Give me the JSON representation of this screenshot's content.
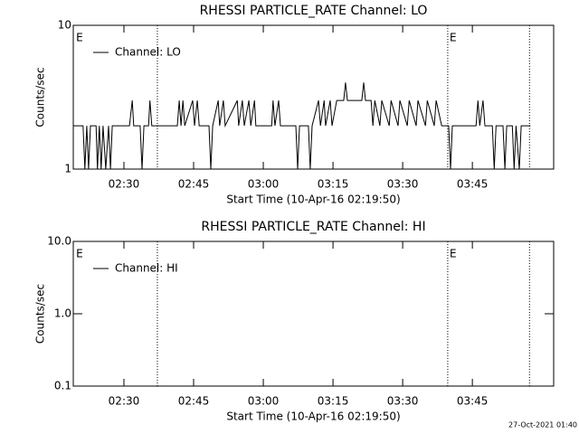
{
  "chart_data": [
    {
      "type": "line",
      "title": "RHESSI PARTICLE_RATE Channel: LO",
      "xlabel": "Start Time (10-Apr-16 02:19:50)",
      "ylabel": "Counts/sec",
      "log_y": true,
      "ylim": [
        1,
        10
      ],
      "yticks": [
        1,
        10
      ],
      "xlim": [
        19.1,
        122.5
      ],
      "xticks": [
        {
          "value": 30,
          "label": "02:30"
        },
        {
          "value": 45,
          "label": "02:45"
        },
        {
          "value": 60,
          "label": "03:00"
        },
        {
          "value": 75,
          "label": "03:15"
        },
        {
          "value": 90,
          "label": "03:30"
        },
        {
          "value": 105,
          "label": "03:45"
        }
      ],
      "vlines": [
        37.2,
        99.7,
        117.3
      ],
      "annotations": [
        {
          "x": 19.7,
          "text": "E"
        },
        {
          "x": 100.1,
          "text": "E"
        }
      ],
      "legend": "upper left",
      "series": [
        {
          "name": "Channel: LO",
          "color": "#000000",
          "x": [
            19.1,
            21.2,
            21.6,
            22.0,
            22.4,
            22.8,
            24.0,
            24.3,
            24.7,
            25.1,
            25.5,
            26.1,
            26.7,
            27.1,
            27.5,
            31.2,
            31.8,
            32.1,
            33.5,
            33.9,
            34.3,
            35.3,
            35.6,
            36.0,
            41.5,
            41.9,
            42.3,
            42.7,
            43.1,
            44.8,
            45.2,
            45.8,
            46.2,
            48.3,
            48.7,
            49.1,
            50.3,
            50.6,
            51.4,
            51.8,
            54.4,
            54.7,
            55.5,
            55.9,
            56.9,
            57.3,
            58.1,
            58.4,
            61.8,
            62.1,
            62.5,
            63.3,
            63.7,
            67.0,
            67.4,
            67.8,
            69.7,
            70.1,
            70.5,
            71.9,
            72.3,
            73.1,
            73.4,
            74.4,
            74.8,
            75.8,
            76.6,
            77.3,
            77.7,
            78.1,
            81.2,
            81.6,
            82.0,
            83.2,
            83.6,
            84.0,
            85.1,
            85.5,
            87.1,
            87.5,
            89.0,
            89.4,
            91.0,
            91.4,
            92.9,
            93.3,
            94.9,
            95.3,
            96.8,
            97.2,
            98.4,
            99.9,
            100.3,
            100.7,
            105.8,
            106.2,
            106.6,
            107.3,
            107.7,
            109.3,
            109.7,
            110.1,
            111.6,
            112.0,
            112.4,
            113.6,
            114.0,
            114.4,
            115.1,
            115.5,
            117.5
          ],
          "values": [
            2,
            2,
            1,
            2,
            1,
            2,
            2,
            1,
            2,
            1,
            2,
            1,
            2,
            1,
            2,
            2,
            3,
            2,
            2,
            1,
            2,
            2,
            3,
            2,
            2,
            3,
            2,
            3,
            2,
            3,
            2,
            3,
            2,
            2,
            1,
            2,
            3,
            2,
            3,
            2,
            3,
            2,
            3,
            2,
            3,
            2,
            3,
            2,
            2,
            3,
            2,
            3,
            2,
            2,
            1,
            2,
            2,
            1,
            2,
            3,
            2,
            3,
            2,
            3,
            2,
            3,
            3,
            3,
            4,
            3,
            3,
            4,
            3,
            3,
            2,
            3,
            2,
            3,
            2,
            3,
            2,
            3,
            2,
            3,
            2,
            3,
            2,
            3,
            2,
            3,
            2,
            2,
            1,
            2,
            2,
            3,
            2,
            3,
            2,
            2,
            1,
            2,
            2,
            1,
            2,
            2,
            1,
            2,
            1,
            2,
            2
          ]
        }
      ]
    },
    {
      "type": "line",
      "title": "RHESSI PARTICLE_RATE Channel: HI",
      "xlabel": "Start Time (10-Apr-16 02:19:50)",
      "ylabel": "Counts/sec",
      "log_y": true,
      "ylim": [
        0.1,
        10
      ],
      "yticks": [
        {
          "value": 0.1,
          "label": "0.1"
        },
        {
          "value": 1,
          "label": "1.0"
        },
        {
          "value": 10,
          "label": "10.0"
        }
      ],
      "xlim": [
        19.1,
        122.5
      ],
      "xticks": [
        {
          "value": 30,
          "label": "02:30"
        },
        {
          "value": 45,
          "label": "02:45"
        },
        {
          "value": 60,
          "label": "03:00"
        },
        {
          "value": 75,
          "label": "03:15"
        },
        {
          "value": 90,
          "label": "03:30"
        },
        {
          "value": 105,
          "label": "03:45"
        }
      ],
      "vlines": [
        37.2,
        99.7,
        117.3
      ],
      "annotations": [
        {
          "x": 19.7,
          "text": "E"
        },
        {
          "x": 100.1,
          "text": "E"
        }
      ],
      "legend": "upper left",
      "series": [
        {
          "name": "Channel: HI",
          "color": "#000000",
          "x": [],
          "values": []
        }
      ]
    }
  ],
  "footer": "27-Oct-2021 01:40"
}
